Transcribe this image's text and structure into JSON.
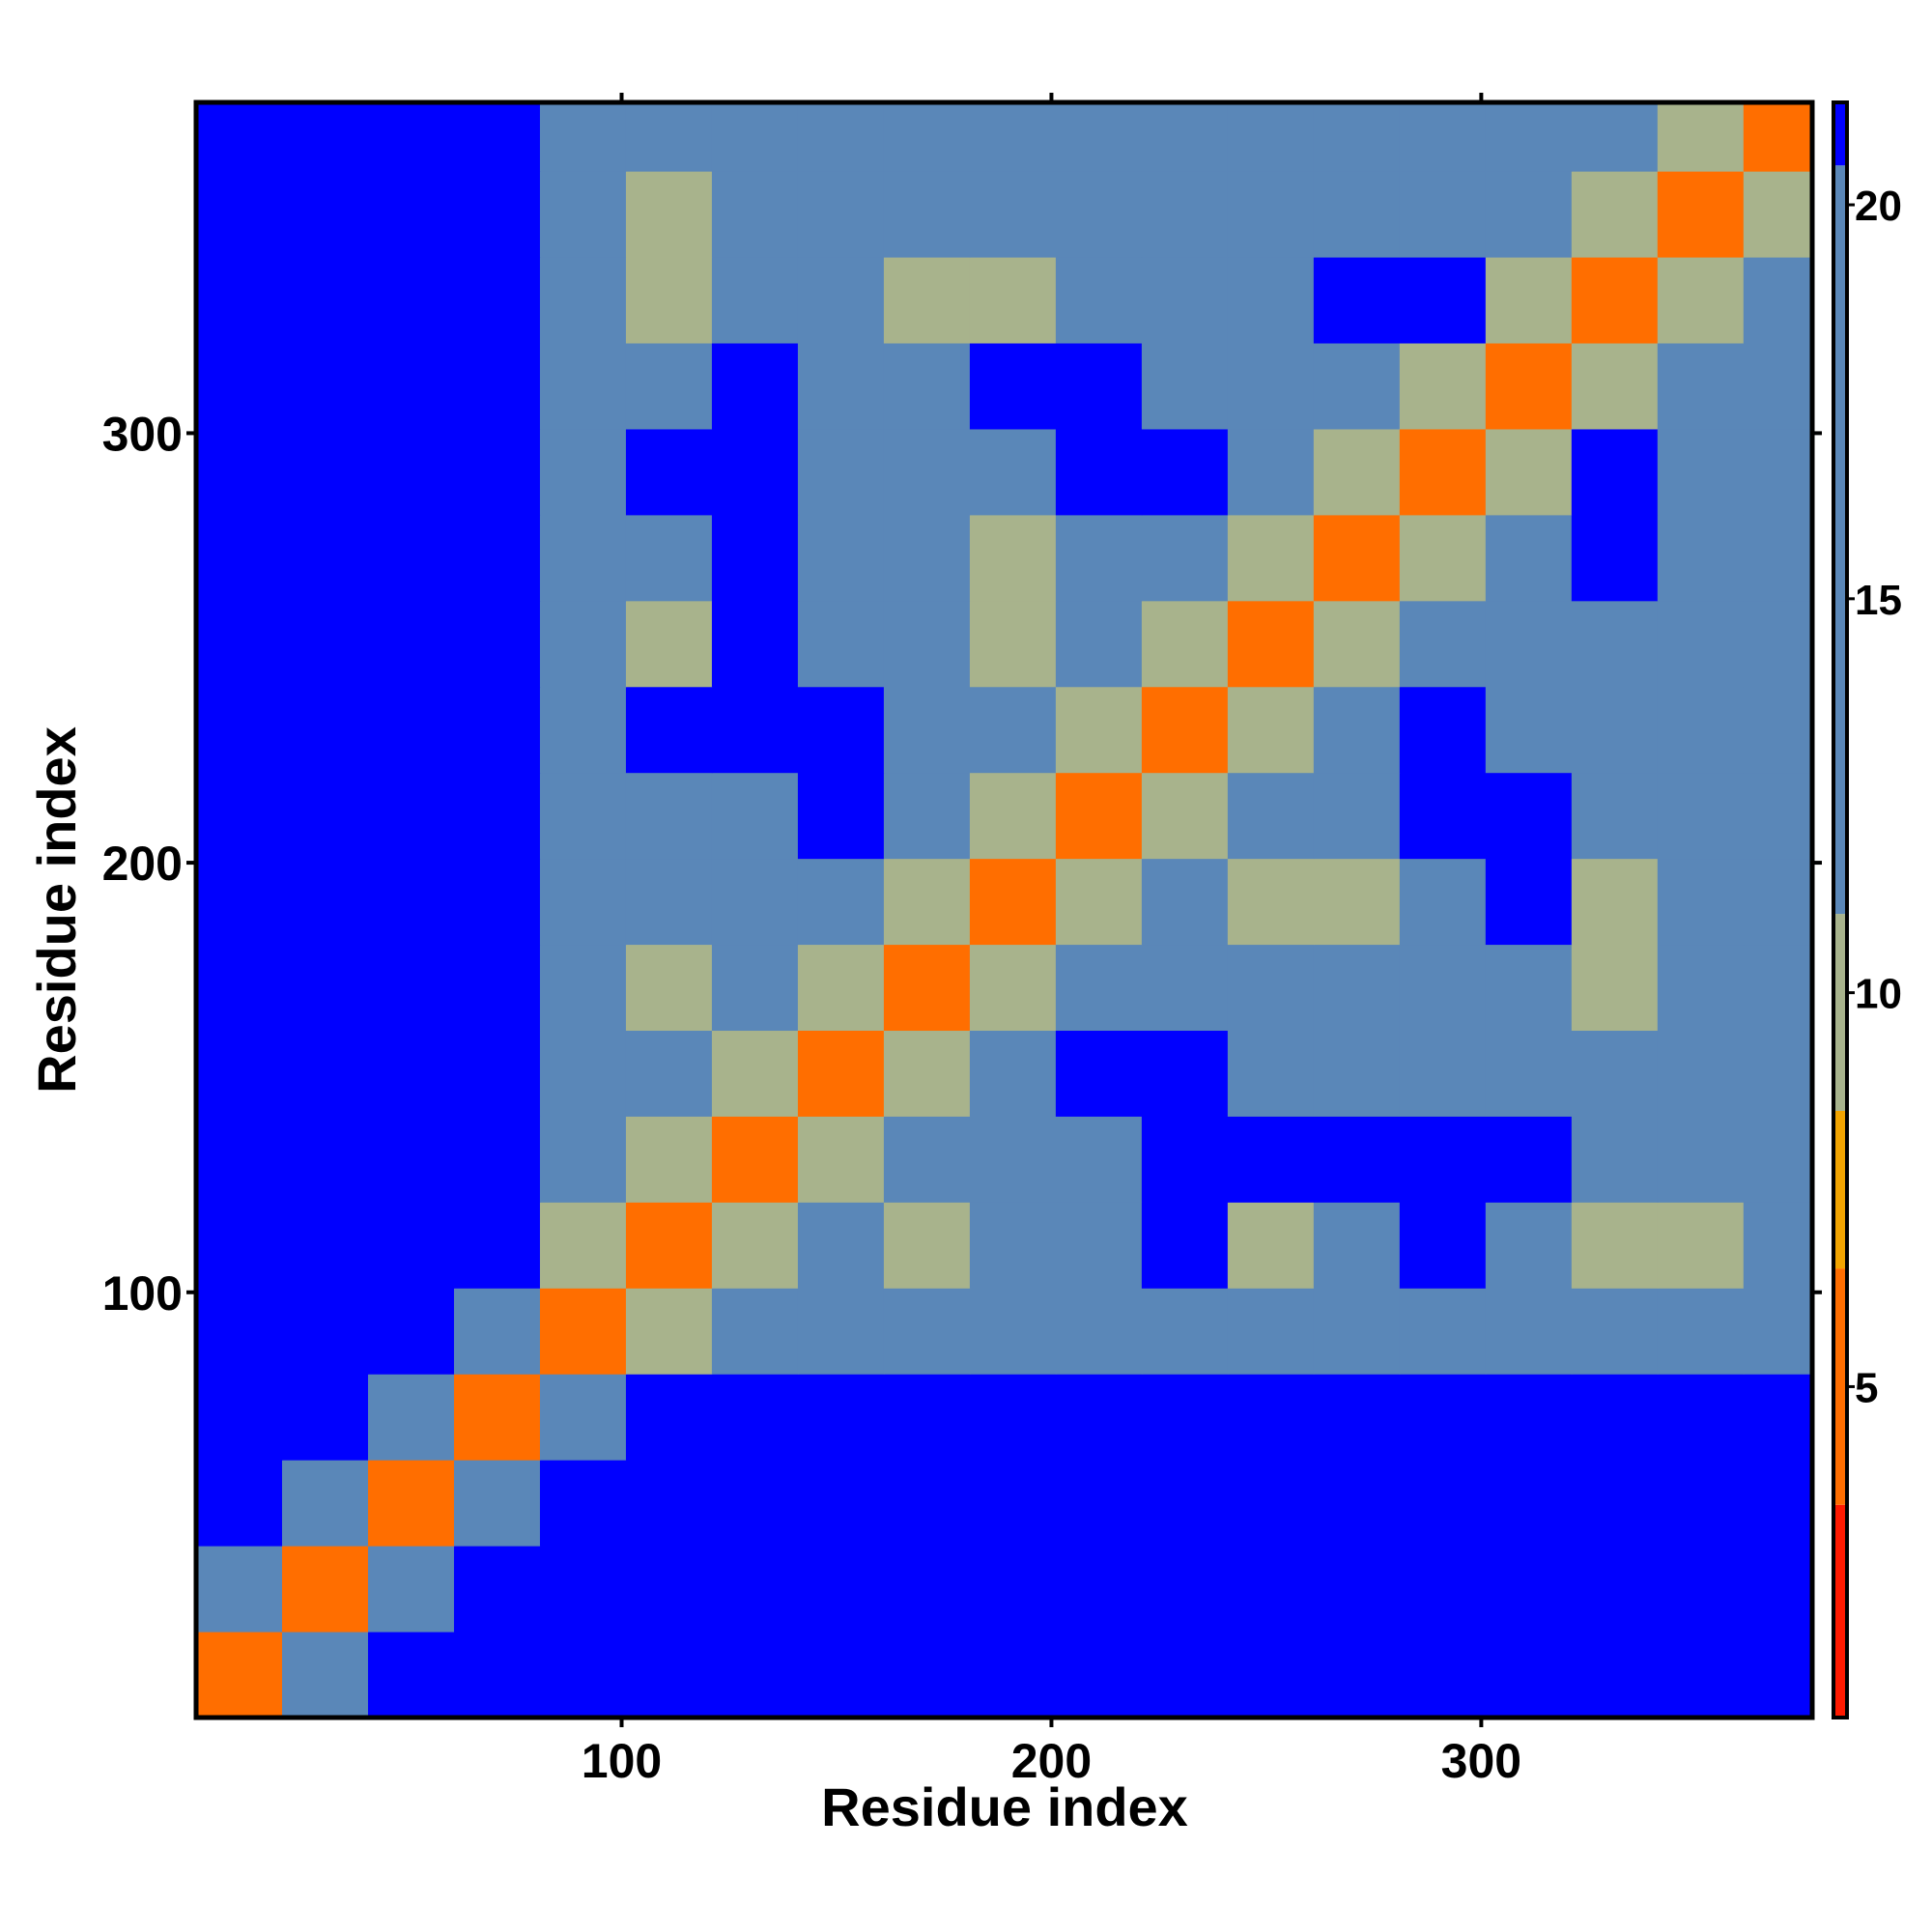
{
  "chart_data": {
    "type": "heatmap",
    "xlabel": "Residue index",
    "ylabel": "Residue index",
    "xlim": [
      1,
      377
    ],
    "ylim": [
      1,
      377
    ],
    "xticks": [
      100,
      200,
      300
    ],
    "yticks": [
      100,
      200,
      300
    ],
    "bins": [
      1,
      21,
      41,
      61,
      81,
      101,
      121,
      141,
      161,
      181,
      201,
      221,
      241,
      261,
      281,
      301,
      321,
      341,
      361,
      377
    ],
    "z": [
      [
        5,
        18,
        21,
        21,
        21,
        21,
        21,
        21,
        21,
        21,
        21,
        21,
        21,
        21,
        21,
        21,
        21,
        21,
        21
      ],
      [
        18,
        5,
        18,
        21,
        21,
        21,
        21,
        21,
        21,
        21,
        21,
        21,
        21,
        21,
        21,
        21,
        21,
        21,
        21
      ],
      [
        21,
        18,
        5,
        18,
        21,
        21,
        21,
        21,
        21,
        21,
        21,
        21,
        21,
        21,
        21,
        21,
        21,
        21,
        21
      ],
      [
        21,
        21,
        18,
        5,
        14,
        21,
        21,
        21,
        21,
        21,
        21,
        21,
        21,
        21,
        21,
        21,
        21,
        21,
        21
      ],
      [
        21,
        21,
        21,
        14,
        5,
        11,
        19,
        19,
        19,
        19,
        19,
        19,
        19,
        19,
        19,
        19,
        19,
        19,
        19
      ],
      [
        21,
        21,
        21,
        21,
        11,
        5,
        11,
        16,
        10,
        16,
        16,
        21,
        10,
        16,
        21,
        16,
        10,
        10,
        18
      ],
      [
        21,
        21,
        21,
        21,
        19,
        11,
        5,
        11,
        16,
        16,
        16,
        21,
        21,
        21,
        21,
        21,
        16,
        16,
        18
      ],
      [
        21,
        21,
        21,
        21,
        19,
        16,
        11,
        5,
        11,
        16,
        21,
        21,
        16,
        16,
        16,
        16,
        16,
        16,
        18
      ],
      [
        21,
        21,
        21,
        21,
        19,
        10,
        16,
        11,
        5,
        11,
        16,
        16,
        16,
        16,
        16,
        16,
        10,
        16,
        18
      ],
      [
        21,
        21,
        21,
        21,
        19,
        16,
        16,
        16,
        11,
        5,
        11,
        16,
        10,
        10,
        16,
        21,
        10,
        16,
        18
      ],
      [
        21,
        21,
        21,
        21,
        19,
        16,
        16,
        21,
        16,
        11,
        5,
        11,
        16,
        16,
        21,
        21,
        16,
        16,
        18
      ],
      [
        21,
        21,
        21,
        21,
        19,
        21,
        21,
        21,
        16,
        16,
        11,
        5,
        11,
        16,
        21,
        16,
        16,
        16,
        18
      ],
      [
        21,
        21,
        21,
        21,
        19,
        10,
        21,
        16,
        16,
        10,
        16,
        11,
        5,
        11,
        16,
        16,
        16,
        16,
        18
      ],
      [
        21,
        21,
        21,
        21,
        19,
        16,
        21,
        16,
        16,
        10,
        16,
        16,
        11,
        5,
        11,
        16,
        21,
        16,
        18
      ],
      [
        21,
        21,
        21,
        21,
        19,
        21,
        21,
        16,
        16,
        16,
        21,
        21,
        16,
        11,
        5,
        11,
        21,
        16,
        18
      ],
      [
        21,
        21,
        21,
        21,
        19,
        16,
        21,
        16,
        16,
        21,
        21,
        16,
        16,
        16,
        11,
        5,
        11,
        16,
        18
      ],
      [
        21,
        21,
        21,
        21,
        19,
        10,
        16,
        16,
        10,
        10,
        16,
        16,
        16,
        21,
        21,
        11,
        5,
        11,
        18
      ],
      [
        21,
        21,
        21,
        21,
        19,
        10,
        16,
        16,
        16,
        16,
        16,
        16,
        16,
        16,
        16,
        16,
        11,
        5,
        11
      ],
      [
        21,
        21,
        21,
        21,
        19,
        18,
        18,
        18,
        18,
        18,
        18,
        18,
        18,
        18,
        18,
        18,
        18,
        11,
        5
      ]
    ],
    "colorbar_lim": [
      0.8,
      21.3
    ],
    "colorbar_ticks": [
      5,
      10,
      15,
      20
    ],
    "levels": [
      {
        "upto": 3.5,
        "color": "#ff1a00"
      },
      {
        "upto": 6.5,
        "color": "#ff6e00"
      },
      {
        "upto": 8.5,
        "color": "#f2a400"
      },
      {
        "upto": 11,
        "color": "#a8b38c"
      },
      {
        "upto": 20.5,
        "color": "#5a87b8"
      },
      {
        "upto": 21.3,
        "color": "#0000ff"
      }
    ]
  }
}
